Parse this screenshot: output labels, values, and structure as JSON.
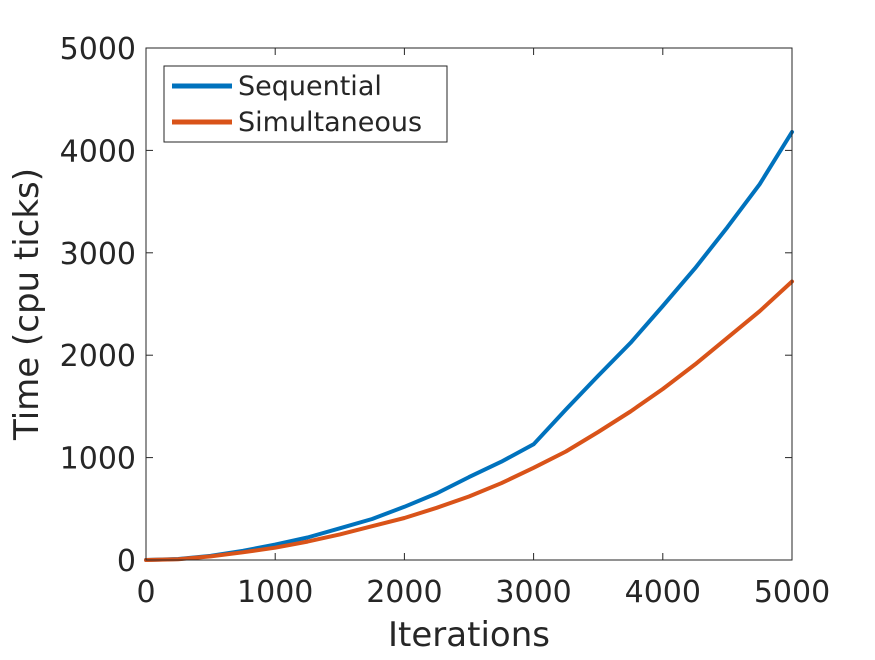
{
  "chart_data": {
    "type": "line",
    "title": "",
    "xlabel": "Iterations",
    "ylabel": "Time (cpu ticks)",
    "xlim": [
      0,
      5000
    ],
    "ylim": [
      0,
      5000
    ],
    "x_ticks": [
      0,
      1000,
      2000,
      3000,
      4000,
      5000
    ],
    "y_ticks": [
      0,
      1000,
      2000,
      3000,
      4000,
      5000
    ],
    "x_tick_labels": [
      "0",
      "1000",
      "2000",
      "3000",
      "4000",
      "5000"
    ],
    "y_tick_labels": [
      "0",
      "1000",
      "2000",
      "3000",
      "4000",
      "5000"
    ],
    "grid": false,
    "legend_position": "top-left",
    "x": [
      0,
      250,
      500,
      750,
      1000,
      1250,
      1500,
      1750,
      2000,
      2250,
      2500,
      2750,
      3000,
      3250,
      3500,
      3750,
      4000,
      4250,
      4500,
      4750,
      5000
    ],
    "series": [
      {
        "name": "Sequential",
        "color": "#0072BD",
        "values": [
          0,
          10,
          40,
          90,
          150,
          220,
          310,
          400,
          520,
          650,
          810,
          960,
          1130,
          1470,
          1800,
          2120,
          2480,
          2850,
          3250,
          3670,
          4180
        ]
      },
      {
        "name": "Simultaneous",
        "color": "#D95319",
        "values": [
          0,
          8,
          35,
          75,
          120,
          180,
          250,
          330,
          410,
          510,
          620,
          750,
          900,
          1060,
          1250,
          1450,
          1670,
          1910,
          2170,
          2430,
          2720
        ]
      }
    ]
  }
}
